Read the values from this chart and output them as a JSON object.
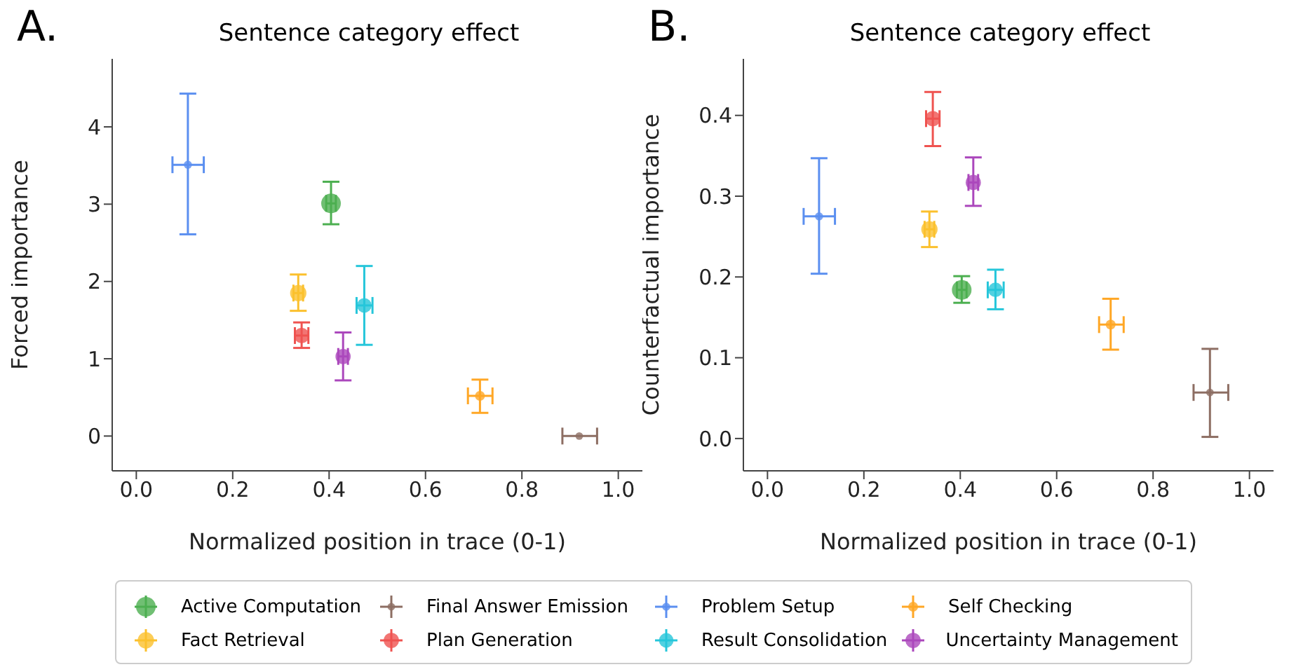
{
  "chart_data": [
    {
      "type": "bubble",
      "title": "Sentence category effect",
      "annotations": [
        "A."
      ],
      "xlabel": "Normalized position in trace (0-1)",
      "ylabel": "Forced importance",
      "xlim": [
        -0.05,
        1.05
      ],
      "ylim": [
        -0.45,
        4.88
      ],
      "xticks": [
        {
          "value": 0,
          "label": "0.0"
        },
        {
          "value": 0.2,
          "label": "0.2"
        },
        {
          "value": 0.4,
          "label": "0.4"
        },
        {
          "value": 0.6,
          "label": "0.6"
        },
        {
          "value": 0.8,
          "label": "0.8"
        },
        {
          "value": 1,
          "label": "1.0"
        }
      ],
      "yticks": [
        0,
        1,
        2,
        3,
        4
      ],
      "grid": false,
      "legend": "bottom",
      "marker": "circle",
      "series": [
        {
          "name": "Active Computation",
          "color": "#4caf50",
          "x": [
            0.404
          ],
          "values": [
            3.01
          ],
          "sizes": [
            1
          ],
          "errors": [
            [
              2.74,
              3.29
            ]
          ],
          "xerrors": [
            [
              0.394,
              0.414
            ]
          ]
        },
        {
          "name": "Fact Retrieval",
          "color": "#fbc02d",
          "x": [
            0.336
          ],
          "values": [
            1.85
          ],
          "sizes": [
            0.69
          ],
          "errors": [
            [
              1.62,
              2.09
            ]
          ],
          "xerrors": [
            [
              0.326,
              0.346
            ]
          ]
        },
        {
          "name": "Final Answer Emission",
          "color": "#8d6e63",
          "x": [
            0.919
          ],
          "values": [
            0
          ],
          "sizes": [
            0.15
          ],
          "errors": [
            null
          ],
          "xerrors": [
            [
              0.884,
              0.956
            ]
          ]
        },
        {
          "name": "Plan Generation",
          "color": "#ef5350",
          "x": [
            0.343
          ],
          "values": [
            1.3
          ],
          "sizes": [
            0.6
          ],
          "errors": [
            [
              1.14,
              1.47
            ]
          ],
          "xerrors": [
            [
              0.329,
              0.357
            ]
          ]
        },
        {
          "name": "Problem Setup",
          "color": "#5b8ff0",
          "x": [
            0.107
          ],
          "values": [
            3.51
          ],
          "sizes": [
            0.17
          ],
          "errors": [
            [
              2.61,
              4.43
            ]
          ],
          "xerrors": [
            [
              0.075,
              0.14
            ]
          ]
        },
        {
          "name": "Result Consolidation",
          "color": "#26c6da",
          "x": [
            0.473
          ],
          "values": [
            1.69
          ],
          "sizes": [
            0.55
          ],
          "errors": [
            [
              1.18,
              2.2
            ]
          ],
          "xerrors": [
            [
              0.457,
              0.49
            ]
          ]
        },
        {
          "name": "Self Checking",
          "color": "#ffa726",
          "x": [
            0.713
          ],
          "values": [
            0.52
          ],
          "sizes": [
            0.25
          ],
          "errors": [
            [
              0.3,
              0.73
            ]
          ],
          "xerrors": [
            [
              0.688,
              0.739
            ]
          ]
        },
        {
          "name": "Uncertainty Management",
          "color": "#ab47bc",
          "x": [
            0.429
          ],
          "values": [
            1.03
          ],
          "sizes": [
            0.6
          ],
          "errors": [
            [
              0.72,
              1.34
            ]
          ],
          "xerrors": [
            [
              0.419,
              0.439
            ]
          ]
        }
      ]
    },
    {
      "type": "bubble",
      "title": "Sentence category effect",
      "annotations": [
        "B."
      ],
      "xlabel": "Normalized position in trace (0-1)",
      "ylabel": "Counterfactual importance",
      "xlim": [
        -0.05,
        1.05
      ],
      "ylim": [
        -0.04,
        0.47
      ],
      "xticks": [
        {
          "value": 0,
          "label": "0.0"
        },
        {
          "value": 0.2,
          "label": "0.2"
        },
        {
          "value": 0.4,
          "label": "0.4"
        },
        {
          "value": 0.6,
          "label": "0.6"
        },
        {
          "value": 0.8,
          "label": "0.8"
        },
        {
          "value": 1,
          "label": "1.0"
        }
      ],
      "yticks": [
        {
          "value": 0,
          "label": "0.0"
        },
        {
          "value": 0.1,
          "label": "0.1"
        },
        {
          "value": 0.2,
          "label": "0.2"
        },
        {
          "value": 0.3,
          "label": "0.3"
        },
        {
          "value": 0.4,
          "label": "0.4"
        }
      ],
      "grid": false,
      "legend": "bottom",
      "marker": "circle",
      "series": [
        {
          "name": "Active Computation",
          "color": "#4caf50",
          "x": [
            0.403
          ],
          "values": [
            0.184
          ],
          "sizes": [
            1
          ],
          "errors": [
            [
              0.168,
              0.201
            ]
          ],
          "xerrors": [
            [
              0.393,
              0.413
            ]
          ]
        },
        {
          "name": "Fact Retrieval",
          "color": "#fbc02d",
          "x": [
            0.336
          ],
          "values": [
            0.259
          ],
          "sizes": [
            0.69
          ],
          "errors": [
            [
              0.237,
              0.281
            ]
          ],
          "xerrors": [
            [
              0.326,
              0.346
            ]
          ]
        },
        {
          "name": "Final Answer Emission",
          "color": "#8d6e63",
          "x": [
            0.918
          ],
          "values": [
            0.057
          ],
          "sizes": [
            0.15
          ],
          "errors": [
            [
              0.002,
              0.111
            ]
          ],
          "xerrors": [
            [
              0.884,
              0.956
            ]
          ]
        },
        {
          "name": "Plan Generation",
          "color": "#ef5350",
          "x": [
            0.343
          ],
          "values": [
            0.396
          ],
          "sizes": [
            0.6
          ],
          "errors": [
            [
              0.362,
              0.429
            ]
          ],
          "xerrors": [
            [
              0.329,
              0.357
            ]
          ]
        },
        {
          "name": "Problem Setup",
          "color": "#5b8ff0",
          "x": [
            0.107
          ],
          "values": [
            0.275
          ],
          "sizes": [
            0.17
          ],
          "errors": [
            [
              0.204,
              0.347
            ]
          ],
          "xerrors": [
            [
              0.075,
              0.14
            ]
          ]
        },
        {
          "name": "Result Consolidation",
          "color": "#26c6da",
          "x": [
            0.473
          ],
          "values": [
            0.184
          ],
          "sizes": [
            0.55
          ],
          "errors": [
            [
              0.16,
              0.209
            ]
          ],
          "xerrors": [
            [
              0.457,
              0.49
            ]
          ]
        },
        {
          "name": "Self Checking",
          "color": "#ffa726",
          "x": [
            0.712
          ],
          "values": [
            0.141
          ],
          "sizes": [
            0.25
          ],
          "errors": [
            [
              0.11,
              0.173
            ]
          ],
          "xerrors": [
            [
              0.688,
              0.739
            ]
          ]
        },
        {
          "name": "Uncertainty Management",
          "color": "#ab47bc",
          "x": [
            0.427
          ],
          "values": [
            0.317
          ],
          "sizes": [
            0.6
          ],
          "errors": [
            [
              0.288,
              0.348
            ]
          ],
          "xerrors": [
            [
              0.417,
              0.437
            ]
          ]
        }
      ]
    }
  ]
}
